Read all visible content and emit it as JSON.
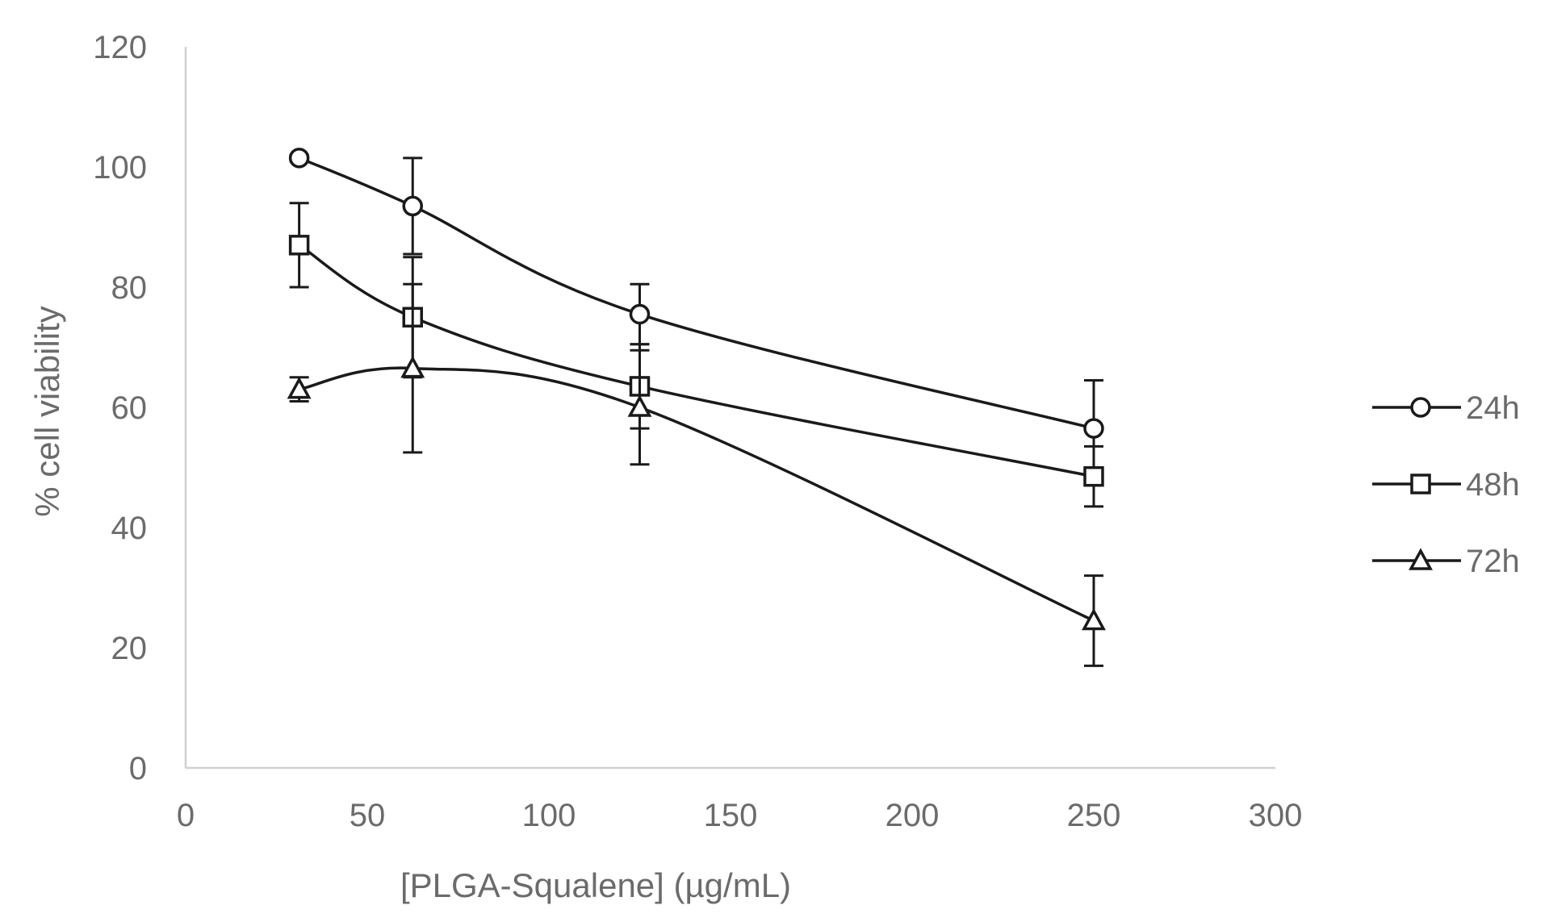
{
  "chart_data": {
    "type": "line",
    "title": "",
    "xlabel": "[PLGA-Squalene] (µg/mL)",
    "ylabel": "% cell viability",
    "xlim": [
      0,
      300
    ],
    "ylim": [
      0,
      120
    ],
    "xticks": [
      0,
      50,
      100,
      150,
      200,
      250,
      300
    ],
    "yticks": [
      0,
      20,
      40,
      60,
      80,
      100,
      120
    ],
    "grid": false,
    "legend_position": "right",
    "x": [
      31.25,
      62.5,
      125,
      250
    ],
    "series": [
      {
        "name": "24h",
        "marker": "circle",
        "values": [
          101.5,
          93.5,
          75.5,
          56.5
        ],
        "errors": [
          0.5,
          8.0,
          5.0,
          8.0
        ]
      },
      {
        "name": "48h",
        "marker": "square",
        "values": [
          87.0,
          75.0,
          63.5,
          48.5
        ],
        "errors": [
          7.0,
          10.0,
          7.0,
          5.0
        ]
      },
      {
        "name": "72h",
        "marker": "triangle",
        "values": [
          63.0,
          66.5,
          60.0,
          24.5
        ],
        "errors": [
          2.0,
          14.0,
          9.5,
          7.5
        ]
      }
    ]
  }
}
